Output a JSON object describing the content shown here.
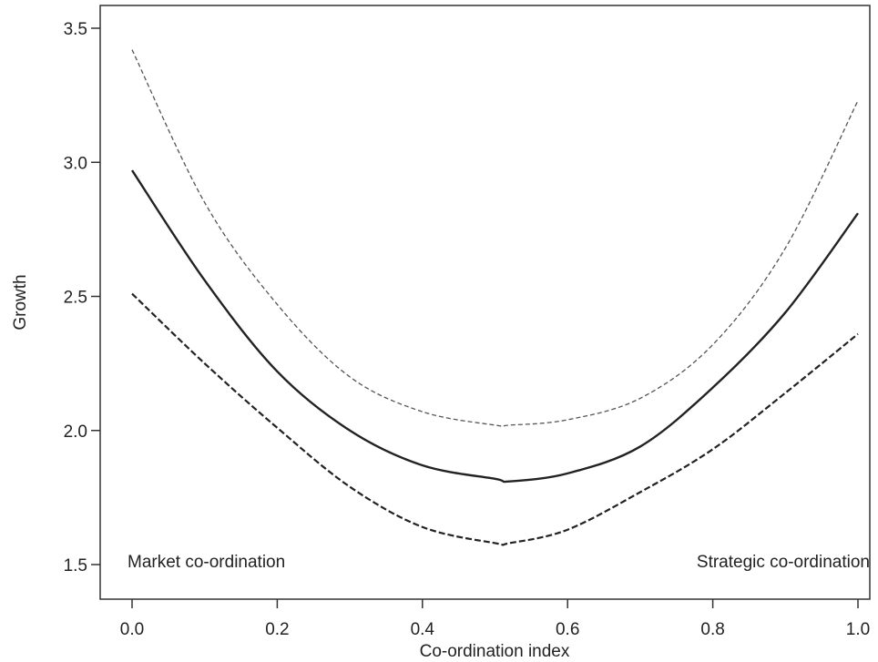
{
  "chart_data": {
    "type": "line",
    "title": "",
    "xlabel": "Co-ordination index",
    "ylabel": "Growth",
    "xlim": [
      0.0,
      1.0
    ],
    "ylim": [
      1.5,
      3.5
    ],
    "x_ticks": [
      "0.0",
      "0.2",
      "0.4",
      "0.6",
      "0.8",
      "1.0"
    ],
    "y_ticks": [
      "1.5",
      "2.0",
      "2.5",
      "3.0",
      "3.5"
    ],
    "grid": false,
    "legend": "none",
    "annotations": {
      "left": "Market co-ordination",
      "right": "Strategic co-ordination"
    },
    "x": [
      0.0,
      0.1,
      0.2,
      0.3,
      0.4,
      0.5,
      0.52,
      0.6,
      0.7,
      0.8,
      0.9,
      1.0
    ],
    "series": [
      {
        "style": "dashed-thin",
        "color": "#555555",
        "values": [
          3.42,
          2.85,
          2.47,
          2.2,
          2.07,
          2.02,
          2.02,
          2.04,
          2.12,
          2.32,
          2.68,
          3.23
        ]
      },
      {
        "style": "solid",
        "color": "#222222",
        "values": [
          2.97,
          2.56,
          2.22,
          2.0,
          1.87,
          1.82,
          1.81,
          1.84,
          1.94,
          2.16,
          2.44,
          2.81
        ]
      },
      {
        "style": "dashed-thick",
        "color": "#222222",
        "values": [
          2.51,
          2.25,
          2.01,
          1.79,
          1.64,
          1.58,
          1.58,
          1.63,
          1.77,
          1.93,
          2.14,
          2.36
        ]
      }
    ]
  }
}
